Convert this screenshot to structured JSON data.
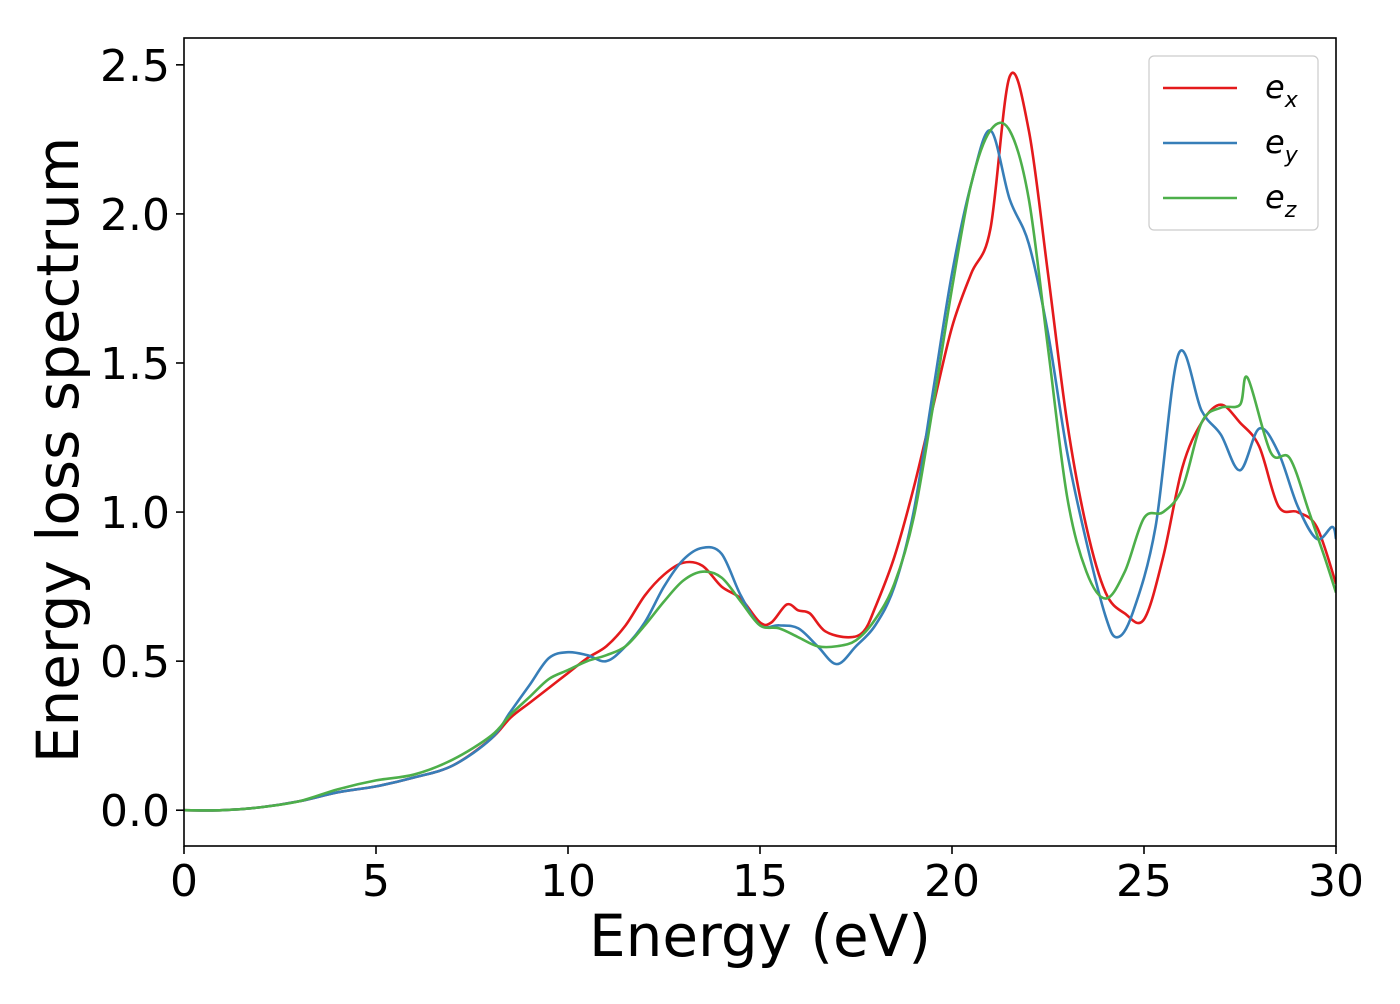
{
  "chart_data": {
    "type": "line",
    "title": "",
    "xlabel": "Energy (eV)",
    "ylabel": "Energy loss spectrum",
    "xlim": [
      0,
      30
    ],
    "ylim": [
      -0.12,
      2.59
    ],
    "xticks": [
      0,
      5,
      10,
      15,
      20,
      25,
      30
    ],
    "xtick_labels": [
      "0",
      "5",
      "10",
      "15",
      "20",
      "25",
      "30"
    ],
    "yticks": [
      0.0,
      0.5,
      1.0,
      1.5,
      2.0,
      2.5
    ],
    "ytick_labels": [
      "0.0",
      "0.5",
      "1.0",
      "1.5",
      "2.0",
      "2.5"
    ],
    "grid": false,
    "legend": "top-right",
    "series": [
      {
        "name": "e",
        "name_sub": "x",
        "color": "#e41a1c",
        "points": [
          [
            0,
            0.0
          ],
          [
            1,
            0.0
          ],
          [
            2,
            0.01
          ],
          [
            3,
            0.03
          ],
          [
            4,
            0.06
          ],
          [
            5,
            0.08
          ],
          [
            6,
            0.11
          ],
          [
            7,
            0.15
          ],
          [
            8,
            0.24
          ],
          [
            8.5,
            0.31
          ],
          [
            9,
            0.36
          ],
          [
            9.5,
            0.41
          ],
          [
            10,
            0.46
          ],
          [
            10.5,
            0.51
          ],
          [
            11,
            0.55
          ],
          [
            11.5,
            0.62
          ],
          [
            12,
            0.72
          ],
          [
            12.5,
            0.79
          ],
          [
            13,
            0.83
          ],
          [
            13.5,
            0.82
          ],
          [
            14,
            0.75
          ],
          [
            14.5,
            0.71
          ],
          [
            15,
            0.63
          ],
          [
            15.3,
            0.63
          ],
          [
            15.7,
            0.69
          ],
          [
            16,
            0.67
          ],
          [
            16.3,
            0.66
          ],
          [
            16.7,
            0.6
          ],
          [
            17.3,
            0.58
          ],
          [
            17.7,
            0.6
          ],
          [
            18,
            0.68
          ],
          [
            18.5,
            0.85
          ],
          [
            19,
            1.08
          ],
          [
            19.5,
            1.35
          ],
          [
            20,
            1.62
          ],
          [
            20.5,
            1.8
          ],
          [
            21,
            1.95
          ],
          [
            21.5,
            2.46
          ],
          [
            22,
            2.28
          ],
          [
            22.5,
            1.8
          ],
          [
            23,
            1.3
          ],
          [
            23.5,
            0.95
          ],
          [
            24,
            0.73
          ],
          [
            24.5,
            0.66
          ],
          [
            25,
            0.64
          ],
          [
            25.5,
            0.85
          ],
          [
            26,
            1.15
          ],
          [
            26.5,
            1.3
          ],
          [
            27,
            1.36
          ],
          [
            27.5,
            1.3
          ],
          [
            28,
            1.22
          ],
          [
            28.5,
            1.02
          ],
          [
            29,
            1.0
          ],
          [
            29.5,
            0.95
          ],
          [
            30,
            0.76
          ]
        ]
      },
      {
        "name": "e",
        "name_sub": "y",
        "color": "#377eb8",
        "points": [
          [
            0,
            0.0
          ],
          [
            1,
            0.0
          ],
          [
            2,
            0.01
          ],
          [
            3,
            0.03
          ],
          [
            4,
            0.06
          ],
          [
            5,
            0.08
          ],
          [
            6,
            0.11
          ],
          [
            7,
            0.15
          ],
          [
            8,
            0.24
          ],
          [
            8.5,
            0.33
          ],
          [
            9,
            0.42
          ],
          [
            9.5,
            0.51
          ],
          [
            10,
            0.53
          ],
          [
            10.5,
            0.52
          ],
          [
            11,
            0.5
          ],
          [
            11.5,
            0.55
          ],
          [
            12,
            0.63
          ],
          [
            12.5,
            0.75
          ],
          [
            13,
            0.84
          ],
          [
            13.5,
            0.88
          ],
          [
            14,
            0.86
          ],
          [
            14.5,
            0.72
          ],
          [
            15,
            0.62
          ],
          [
            15.5,
            0.62
          ],
          [
            16,
            0.61
          ],
          [
            16.5,
            0.55
          ],
          [
            17,
            0.49
          ],
          [
            17.5,
            0.55
          ],
          [
            18,
            0.62
          ],
          [
            18.5,
            0.75
          ],
          [
            19,
            1.0
          ],
          [
            19.5,
            1.4
          ],
          [
            20,
            1.8
          ],
          [
            20.5,
            2.1
          ],
          [
            21,
            2.28
          ],
          [
            21.5,
            2.05
          ],
          [
            22,
            1.9
          ],
          [
            22.5,
            1.6
          ],
          [
            23,
            1.2
          ],
          [
            23.5,
            0.9
          ],
          [
            24,
            0.65
          ],
          [
            24.3,
            0.58
          ],
          [
            24.7,
            0.66
          ],
          [
            25.3,
            0.95
          ],
          [
            25.9,
            1.53
          ],
          [
            26.5,
            1.34
          ],
          [
            27,
            1.26
          ],
          [
            27.5,
            1.14
          ],
          [
            28,
            1.28
          ],
          [
            28.5,
            1.2
          ],
          [
            29,
            1.02
          ],
          [
            29.5,
            0.91
          ],
          [
            29.9,
            0.95
          ],
          [
            30,
            0.91
          ]
        ]
      },
      {
        "name": "e",
        "name_sub": "z",
        "color": "#4daf4a",
        "points": [
          [
            0,
            0.0
          ],
          [
            1,
            0.0
          ],
          [
            2,
            0.01
          ],
          [
            3,
            0.03
          ],
          [
            4,
            0.07
          ],
          [
            5,
            0.1
          ],
          [
            6,
            0.12
          ],
          [
            7,
            0.17
          ],
          [
            8,
            0.25
          ],
          [
            8.5,
            0.32
          ],
          [
            9,
            0.38
          ],
          [
            9.5,
            0.44
          ],
          [
            10,
            0.47
          ],
          [
            10.5,
            0.5
          ],
          [
            11,
            0.52
          ],
          [
            11.5,
            0.55
          ],
          [
            12,
            0.62
          ],
          [
            12.5,
            0.7
          ],
          [
            13,
            0.77
          ],
          [
            13.5,
            0.8
          ],
          [
            14,
            0.78
          ],
          [
            14.5,
            0.7
          ],
          [
            15,
            0.62
          ],
          [
            15.5,
            0.61
          ],
          [
            16,
            0.58
          ],
          [
            16.5,
            0.55
          ],
          [
            17,
            0.55
          ],
          [
            17.5,
            0.57
          ],
          [
            18,
            0.64
          ],
          [
            18.5,
            0.76
          ],
          [
            19,
            0.98
          ],
          [
            19.5,
            1.35
          ],
          [
            20,
            1.75
          ],
          [
            20.5,
            2.1
          ],
          [
            21,
            2.28
          ],
          [
            21.5,
            2.28
          ],
          [
            22,
            2.05
          ],
          [
            22.5,
            1.55
          ],
          [
            23,
            1.05
          ],
          [
            23.5,
            0.8
          ],
          [
            24,
            0.71
          ],
          [
            24.5,
            0.8
          ],
          [
            25,
            0.98
          ],
          [
            25.5,
            1.0
          ],
          [
            26,
            1.08
          ],
          [
            26.5,
            1.3
          ],
          [
            27,
            1.35
          ],
          [
            27.5,
            1.36
          ],
          [
            27.7,
            1.45
          ],
          [
            28.3,
            1.2
          ],
          [
            28.8,
            1.18
          ],
          [
            29.3,
            1.0
          ],
          [
            29.7,
            0.85
          ],
          [
            30,
            0.73
          ]
        ]
      }
    ]
  }
}
